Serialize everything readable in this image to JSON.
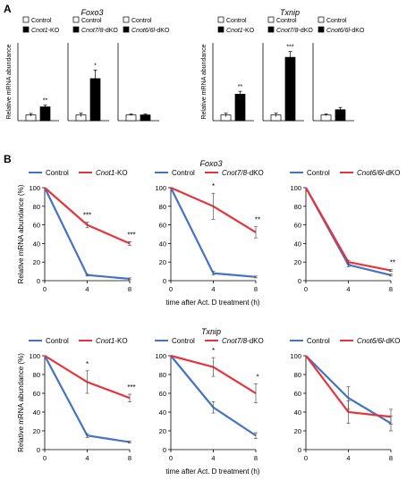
{
  "panel_labels": {
    "a": "A",
    "b": "B"
  },
  "gene_titles": {
    "foxo3": "Foxo3",
    "txnip": "Txnip"
  },
  "y_axis_label": "Relative mRNA abundance",
  "y_axis_label_b": "Relative mRNA abundance (%)",
  "x_axis_label": "time after Act. D treatment (h)",
  "control_label": "Control",
  "colors": {
    "control": "#4472c4",
    "mutant": "#e8333a",
    "bar_control": "#ffffff",
    "bar_mutant": "#000000"
  },
  "chart_data": [
    {
      "type": "bar",
      "gene": "Foxo3",
      "categories": [
        "Control",
        "Cnot1-KO"
      ],
      "values": [
        1.0,
        2.4
      ],
      "errors": [
        0.25,
        0.3
      ],
      "significance": [
        "",
        "**"
      ]
    },
    {
      "type": "bar",
      "gene": "Foxo3",
      "categories": [
        "Control",
        "Cnot7/8-dKO"
      ],
      "values": [
        1.0,
        7.3
      ],
      "errors": [
        0.3,
        1.5
      ],
      "significance": [
        "",
        "*"
      ]
    },
    {
      "type": "bar",
      "gene": "Foxo3",
      "categories": [
        "Control",
        "Cnot6/6l-dKO"
      ],
      "values": [
        1.0,
        1.0
      ],
      "errors": [
        0.15,
        0.15
      ],
      "significance": [
        "",
        ""
      ]
    },
    {
      "type": "bar",
      "gene": "Txnip",
      "categories": [
        "Control",
        "Cnot1-KO"
      ],
      "values": [
        1.0,
        4.6
      ],
      "errors": [
        0.3,
        0.5
      ],
      "significance": [
        "",
        "**"
      ]
    },
    {
      "type": "bar",
      "gene": "Txnip",
      "categories": [
        "Control",
        "Cnot7/8-dKO"
      ],
      "values": [
        1.0,
        11.0
      ],
      "errors": [
        0.3,
        1.0
      ],
      "significance": [
        "",
        "***"
      ]
    },
    {
      "type": "bar",
      "gene": "Txnip",
      "categories": [
        "Control",
        "Cnot6/6l-dKO"
      ],
      "values": [
        1.0,
        1.9
      ],
      "errors": [
        0.15,
        0.4
      ],
      "significance": [
        "",
        ""
      ]
    },
    {
      "type": "line",
      "gene": "Foxo3",
      "x": [
        0,
        4,
        8
      ],
      "xticks": [
        "0",
        "4",
        "8"
      ],
      "ylim": [
        0,
        100
      ],
      "yticks": [
        "0",
        "20",
        "40",
        "60",
        "80",
        "100"
      ],
      "series": [
        {
          "name": "Control",
          "values": [
            100,
            6,
            2
          ],
          "errors": [
            0,
            1,
            1
          ]
        },
        {
          "name": "Cnot1-KO",
          "values": [
            100,
            60,
            40
          ],
          "errors": [
            0,
            3,
            2
          ]
        }
      ],
      "significance": [
        "",
        "***",
        "***"
      ]
    },
    {
      "type": "line",
      "gene": "Foxo3",
      "x": [
        0,
        4,
        8
      ],
      "xticks": [
        "0",
        "4",
        "8"
      ],
      "ylim": [
        0,
        100
      ],
      "yticks": [
        "0",
        "20",
        "40",
        "60",
        "80",
        "100"
      ],
      "series": [
        {
          "name": "Control",
          "values": [
            100,
            8,
            4
          ],
          "errors": [
            0,
            2,
            1
          ]
        },
        {
          "name": "Cnot7/8-dKO",
          "values": [
            100,
            80,
            52
          ],
          "errors": [
            0,
            14,
            6
          ]
        }
      ],
      "significance": [
        "",
        "*",
        "**"
      ]
    },
    {
      "type": "line",
      "gene": "Foxo3",
      "x": [
        0,
        4,
        8
      ],
      "xticks": [
        "0",
        "4",
        "8"
      ],
      "ylim": [
        0,
        100
      ],
      "yticks": [
        "0",
        "20",
        "40",
        "60",
        "80",
        "100"
      ],
      "series": [
        {
          "name": "Control",
          "values": [
            100,
            17,
            6
          ],
          "errors": [
            0,
            2,
            1
          ]
        },
        {
          "name": "Cnot6/6l-dKO",
          "values": [
            100,
            20,
            11
          ],
          "errors": [
            0,
            2,
            1
          ]
        }
      ],
      "significance": [
        "",
        "",
        "**"
      ]
    },
    {
      "type": "line",
      "gene": "Txnip",
      "x": [
        0,
        4,
        8
      ],
      "xticks": [
        "0",
        "4",
        "8"
      ],
      "ylim": [
        0,
        100
      ],
      "yticks": [
        "0",
        "20",
        "40",
        "60",
        "80",
        "100"
      ],
      "series": [
        {
          "name": "Control",
          "values": [
            100,
            15,
            8
          ],
          "errors": [
            0,
            2,
            1
          ]
        },
        {
          "name": "Cnot1-KO",
          "values": [
            100,
            72,
            55
          ],
          "errors": [
            0,
            12,
            4
          ]
        }
      ],
      "significance": [
        "",
        "*",
        "***"
      ]
    },
    {
      "type": "line",
      "gene": "Txnip",
      "x": [
        0,
        4,
        8
      ],
      "xticks": [
        "0",
        "4",
        "8"
      ],
      "ylim": [
        0,
        100
      ],
      "yticks": [
        "0",
        "20",
        "40",
        "60",
        "80",
        "100"
      ],
      "series": [
        {
          "name": "Control",
          "values": [
            100,
            45,
            15
          ],
          "errors": [
            0,
            6,
            3
          ]
        },
        {
          "name": "Cnot7/8-dKO",
          "values": [
            100,
            88,
            60
          ],
          "errors": [
            0,
            10,
            10
          ]
        }
      ],
      "significance": [
        "",
        "*",
        "*"
      ]
    },
    {
      "type": "line",
      "gene": "Txnip",
      "x": [
        0,
        4,
        8
      ],
      "xticks": [
        "0",
        "4",
        "8"
      ],
      "ylim": [
        0,
        100
      ],
      "yticks": [
        "0",
        "20",
        "40",
        "60",
        "80",
        "100"
      ],
      "series": [
        {
          "name": "Control",
          "values": [
            100,
            55,
            28
          ],
          "errors": [
            0,
            12,
            8
          ]
        },
        {
          "name": "Cnot6/6l-dKO",
          "values": [
            100,
            40,
            35
          ],
          "errors": [
            0,
            12,
            8
          ]
        }
      ],
      "significance": [
        "",
        "",
        ""
      ]
    }
  ],
  "bar_legends": [
    {
      "control": "Control",
      "mutant_italic": "Cnot1",
      "mutant_suffix": "-KO"
    },
    {
      "control": "Control",
      "mutant_italic": "Cnot7/8",
      "mutant_suffix": "-dKO"
    },
    {
      "control": "Control",
      "mutant_italic": "Cnot6/6l",
      "mutant_suffix": "-dKO"
    }
  ]
}
